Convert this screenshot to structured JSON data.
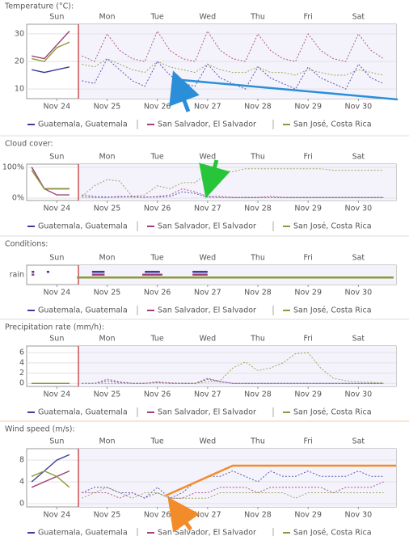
{
  "chart_data": [
    {
      "type": "line",
      "title": "Temperature (°C):",
      "xlim": [
        -0.1,
        7.25
      ],
      "ylim": [
        6.5,
        33.5
      ],
      "yticks": [
        10,
        20,
        30
      ],
      "grid": true,
      "now": 0.93,
      "top_ticks": [
        {
          "value": 0.5,
          "label": "Sun"
        },
        {
          "value": 1.5,
          "label": "Mon"
        },
        {
          "value": 2.5,
          "label": "Tue"
        },
        {
          "value": 3.5,
          "label": "Wed"
        },
        {
          "value": 4.5,
          "label": "Thu"
        },
        {
          "value": 5.5,
          "label": "Fri"
        },
        {
          "value": 6.5,
          "label": "Sat"
        }
      ],
      "xticks": [
        {
          "value": 0.5,
          "label": "Nov 24"
        },
        {
          "value": 1.5,
          "label": "Nov 25"
        },
        {
          "value": 2.5,
          "label": "Nov 26"
        },
        {
          "value": 3.5,
          "label": "Nov 27"
        },
        {
          "value": 4.5,
          "label": "Nov 28"
        },
        {
          "value": 5.5,
          "label": "Nov 29"
        },
        {
          "value": 6.5,
          "label": "Nov 30"
        }
      ],
      "x": [
        0,
        0.25,
        0.5,
        0.75,
        1,
        1.25,
        1.5,
        1.75,
        2,
        2.25,
        2.5,
        2.75,
        3,
        3.25,
        3.5,
        3.75,
        4,
        4.25,
        4.5,
        4.75,
        5,
        5.25,
        5.5,
        5.75,
        6,
        6.25,
        6.5,
        6.75,
        7
      ],
      "series": [
        {
          "name": "Guatemala, Guatemala",
          "color": "#3c3ca0",
          "values": [
            17,
            16,
            17,
            18,
            13,
            12,
            21,
            17,
            13,
            11,
            20,
            15,
            12,
            11,
            19,
            14,
            12,
            10,
            18,
            14,
            12,
            10,
            18,
            14,
            12,
            10,
            19,
            14,
            12
          ]
        },
        {
          "name": "San Salvador, El Salvador",
          "color": "#a0407a",
          "values": [
            22,
            21,
            26,
            31,
            22,
            20,
            30,
            24,
            21,
            20,
            31,
            24,
            21,
            20,
            31,
            24,
            21,
            20,
            30,
            24,
            21,
            20,
            30,
            24,
            21,
            20,
            30,
            24,
            21
          ]
        },
        {
          "name": "San José, Costa Rica",
          "color": "#8c9a3a",
          "values": [
            21,
            20,
            25,
            27,
            19,
            18,
            21,
            19,
            17,
            16,
            20,
            18,
            17,
            16,
            19,
            17,
            16,
            16,
            18,
            16,
            16,
            15,
            17,
            16,
            15,
            15,
            17,
            16,
            15
          ]
        }
      ]
    },
    {
      "type": "line",
      "title": "Cloud cover:",
      "xlim": [
        -0.1,
        7.25
      ],
      "ylim": [
        -8,
        110
      ],
      "yticks": [
        {
          "value": 0,
          "label": "0%"
        },
        {
          "value": 100,
          "label": "100%"
        }
      ],
      "grid": true,
      "now": 0.93,
      "top_ticks": [
        {
          "value": 0.5,
          "label": "Sun"
        },
        {
          "value": 1.5,
          "label": "Mon"
        },
        {
          "value": 2.5,
          "label": "Tue"
        },
        {
          "value": 3.5,
          "label": "Wed"
        },
        {
          "value": 4.5,
          "label": "Thu"
        },
        {
          "value": 5.5,
          "label": "Fri"
        },
        {
          "value": 6.5,
          "label": "Sat"
        }
      ],
      "xticks": [
        {
          "value": 0.5,
          "label": "Nov 24"
        },
        {
          "value": 1.5,
          "label": "Nov 25"
        },
        {
          "value": 2.5,
          "label": "Nov 26"
        },
        {
          "value": 3.5,
          "label": "Nov 27"
        },
        {
          "value": 4.5,
          "label": "Nov 28"
        },
        {
          "value": 5.5,
          "label": "Nov 29"
        },
        {
          "value": 6.5,
          "label": "Nov 30"
        }
      ],
      "x": [
        0,
        0.25,
        0.5,
        0.75,
        1,
        1.25,
        1.5,
        1.75,
        2,
        2.25,
        2.5,
        2.75,
        3,
        3.25,
        3.5,
        3.75,
        4,
        4.25,
        4.5,
        4.75,
        5,
        5.25,
        5.5,
        5.75,
        6,
        6.25,
        6.5,
        6.75,
        7
      ],
      "series": [
        {
          "name": "Guatemala, Guatemala",
          "color": "#3c3ca0",
          "values": [
            100,
            30,
            30,
            30,
            10,
            5,
            3,
            5,
            5,
            3,
            3,
            5,
            20,
            15,
            3,
            2,
            2,
            2,
            2,
            2,
            2,
            2,
            2,
            2,
            2,
            2,
            2,
            2,
            2
          ]
        },
        {
          "name": "San Salvador, El Salvador",
          "color": "#a0407a",
          "values": [
            100,
            30,
            10,
            10,
            3,
            2,
            2,
            3,
            3,
            2,
            5,
            10,
            30,
            20,
            5,
            5,
            2,
            2,
            2,
            5,
            2,
            2,
            2,
            2,
            2,
            2,
            2,
            2,
            2
          ]
        },
        {
          "name": "San José, Costa Rica",
          "color": "#8c9a3a",
          "values": [
            90,
            30,
            30,
            30,
            5,
            40,
            60,
            55,
            5,
            10,
            40,
            30,
            50,
            50,
            80,
            90,
            85,
            95,
            95,
            95,
            95,
            95,
            95,
            95,
            90,
            90,
            90,
            90,
            90
          ]
        }
      ]
    },
    {
      "type": "timeline",
      "title": "Conditions:",
      "categories": [
        "rain"
      ],
      "xlim": [
        -0.1,
        7.25
      ],
      "now": 0.93,
      "top_ticks": [
        {
          "value": 0.5,
          "label": "Sun"
        },
        {
          "value": 1.5,
          "label": "Mon"
        },
        {
          "value": 2.5,
          "label": "Tue"
        },
        {
          "value": 3.5,
          "label": "Wed"
        },
        {
          "value": 4.5,
          "label": "Thu"
        },
        {
          "value": 5.5,
          "label": "Fri"
        },
        {
          "value": 6.5,
          "label": "Sat"
        }
      ],
      "xticks": [
        {
          "value": 0.5,
          "label": "Nov 24"
        },
        {
          "value": 1.5,
          "label": "Nov 25"
        },
        {
          "value": 2.5,
          "label": "Nov 26"
        },
        {
          "value": 3.5,
          "label": "Nov 27"
        },
        {
          "value": 4.5,
          "label": "Nov 28"
        },
        {
          "value": 5.5,
          "label": "Nov 29"
        },
        {
          "value": 6.5,
          "label": "Nov 30"
        }
      ],
      "series": [
        {
          "name": "Guatemala, Guatemala",
          "color": "#3c3ca0",
          "intervals": [
            [
              0,
              0.05
            ],
            [
              0.3,
              0.35
            ],
            [
              1.2,
              1.45
            ],
            [
              2.25,
              2.55
            ],
            [
              3.2,
              3.5
            ]
          ]
        },
        {
          "name": "San Salvador, El Salvador",
          "color": "#a0407a",
          "intervals": [
            [
              0,
              0.05
            ],
            [
              1.2,
              1.45
            ],
            [
              2.2,
              2.6
            ],
            [
              3.2,
              3.5
            ]
          ]
        },
        {
          "name": "San José, Costa Rica",
          "color": "#8c9a3a",
          "intervals": [
            [
              0.9,
              7.2
            ]
          ]
        }
      ]
    },
    {
      "type": "line",
      "title": "Precipitation rate (mm/h):",
      "xlim": [
        -0.1,
        7.25
      ],
      "ylim": [
        -0.6,
        7.3
      ],
      "yticks": [
        0,
        2,
        4,
        6
      ],
      "grid": true,
      "now": 0.93,
      "top_ticks": [
        {
          "value": 0.5,
          "label": "Sun"
        },
        {
          "value": 1.5,
          "label": "Mon"
        },
        {
          "value": 2.5,
          "label": "Tue"
        },
        {
          "value": 3.5,
          "label": "Wed"
        },
        {
          "value": 4.5,
          "label": "Thu"
        },
        {
          "value": 5.5,
          "label": "Fri"
        },
        {
          "value": 6.5,
          "label": "Sat"
        }
      ],
      "xticks": [
        {
          "value": 0.5,
          "label": "Nov 24"
        },
        {
          "value": 1.5,
          "label": "Nov 25"
        },
        {
          "value": 2.5,
          "label": "Nov 26"
        },
        {
          "value": 3.5,
          "label": "Nov 27"
        },
        {
          "value": 4.5,
          "label": "Nov 28"
        },
        {
          "value": 5.5,
          "label": "Nov 29"
        },
        {
          "value": 6.5,
          "label": "Nov 30"
        }
      ],
      "x": [
        0,
        0.25,
        0.5,
        0.75,
        1,
        1.25,
        1.5,
        1.75,
        2,
        2.25,
        2.5,
        2.75,
        3,
        3.25,
        3.5,
        3.75,
        4,
        4.25,
        4.5,
        4.75,
        5,
        5.25,
        5.5,
        5.75,
        6,
        6.25,
        6.5,
        6.75,
        7
      ],
      "series": [
        {
          "name": "Guatemala, Guatemala",
          "color": "#3c3ca0",
          "values": [
            0,
            0,
            0,
            0,
            0,
            0,
            0.5,
            0.2,
            0,
            0,
            0.2,
            0,
            0,
            0,
            0.8,
            0.3,
            0,
            0,
            0,
            0,
            0,
            0,
            0,
            0,
            0,
            0,
            0,
            0,
            0
          ]
        },
        {
          "name": "San Salvador, El Salvador",
          "color": "#a0407a",
          "values": [
            0,
            0,
            0,
            0,
            0,
            0,
            0.8,
            0.3,
            0,
            0,
            0.3,
            0.1,
            0,
            0,
            1,
            0.4,
            0,
            0,
            0,
            0,
            0,
            0,
            0,
            0,
            0,
            0,
            0,
            0,
            0
          ]
        },
        {
          "name": "San José, Costa Rica",
          "color": "#8c9a3a",
          "values": [
            0,
            0,
            0,
            0,
            0,
            0,
            0,
            0,
            0,
            0,
            0.1,
            0,
            0,
            0,
            0.3,
            0.5,
            3,
            4.2,
            2.5,
            3,
            4,
            5.8,
            6,
            3,
            1,
            0.5,
            0.3,
            0.2,
            0.1
          ]
        }
      ]
    },
    {
      "type": "line",
      "title": "Wind speed (m/s):",
      "xlim": [
        -0.1,
        7.25
      ],
      "ylim": [
        -0.6,
        10.1
      ],
      "yticks": [
        0,
        4,
        8
      ],
      "grid": true,
      "now": 0.93,
      "top_ticks": [
        {
          "value": 0.5,
          "label": "Sun"
        },
        {
          "value": 1.5,
          "label": "Mon"
        },
        {
          "value": 2.5,
          "label": "Tue"
        },
        {
          "value": 3.5,
          "label": "Wed"
        },
        {
          "value": 4.5,
          "label": "Thu"
        },
        {
          "value": 5.5,
          "label": "Fri"
        },
        {
          "value": 6.5,
          "label": "Sat"
        }
      ],
      "xticks": [
        {
          "value": 0.5,
          "label": "Nov 24"
        },
        {
          "value": 1.5,
          "label": "Nov 25"
        },
        {
          "value": 2.5,
          "label": "Nov 26"
        },
        {
          "value": 3.5,
          "label": "Nov 27"
        },
        {
          "value": 4.5,
          "label": "Nov 28"
        },
        {
          "value": 5.5,
          "label": "Nov 29"
        },
        {
          "value": 6.5,
          "label": "Nov 30"
        }
      ],
      "x": [
        0,
        0.25,
        0.5,
        0.75,
        1,
        1.25,
        1.5,
        1.75,
        2,
        2.25,
        2.5,
        2.75,
        3,
        3.25,
        3.5,
        3.75,
        4,
        4.25,
        4.5,
        4.75,
        5,
        5.25,
        5.5,
        5.75,
        6,
        6.25,
        6.5,
        6.75,
        7
      ],
      "series": [
        {
          "name": "Guatemala, Guatemala",
          "color": "#3c3ca0",
          "values": [
            4,
            6,
            8,
            9,
            2,
            3,
            3,
            2,
            2,
            1,
            3,
            1,
            2,
            4,
            5,
            5,
            6,
            5,
            4,
            6,
            5,
            5,
            6,
            5,
            5,
            5,
            6,
            5,
            5
          ]
        },
        {
          "name": "San Salvador, El Salvador",
          "color": "#a0407a",
          "values": [
            3,
            4,
            5,
            6,
            2,
            2,
            2,
            1,
            2,
            1,
            2,
            1,
            1,
            2,
            2,
            3,
            3,
            3,
            2,
            3,
            3,
            3,
            3,
            3,
            2,
            3,
            3,
            3,
            4
          ]
        },
        {
          "name": "San José, Costa Rica",
          "color": "#8c9a3a",
          "values": [
            5,
            6,
            5,
            3,
            1,
            2,
            3,
            2,
            1,
            2,
            2,
            1,
            1,
            1,
            1,
            2,
            2,
            2,
            2,
            2,
            2,
            1,
            2,
            2,
            2,
            2,
            2,
            2,
            2
          ]
        }
      ]
    }
  ]
}
